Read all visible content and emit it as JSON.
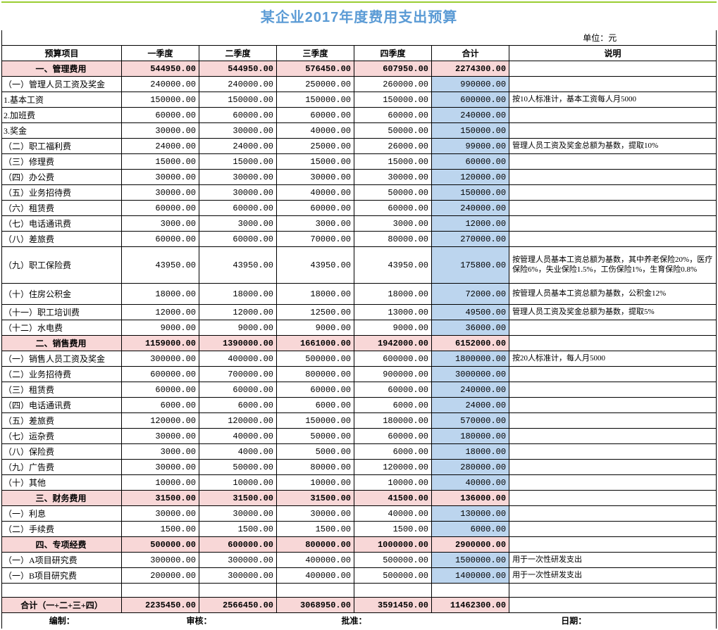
{
  "title": "某企业2017年度费用支出预算",
  "unit_label": "单位：元",
  "headers": {
    "item": "预算项目",
    "q1": "一季度",
    "q2": "二季度",
    "q3": "三季度",
    "q4": "四季度",
    "total": "合计",
    "desc": "说明"
  },
  "rows": [
    {
      "t": "sec",
      "label": "一、管理费用",
      "q1": "544950.00",
      "q2": "544950.00",
      "q3": "576450.00",
      "q4": "607950.00",
      "tot": "2274300.00",
      "desc": ""
    },
    {
      "t": "row",
      "label": "（一）管理人员工资及奖金",
      "q1": "240000.00",
      "q2": "240000.00",
      "q3": "250000.00",
      "q4": "260000.00",
      "tot": "990000.00",
      "desc": ""
    },
    {
      "t": "row",
      "label": "1.基本工资",
      "q1": "150000.00",
      "q2": "150000.00",
      "q3": "150000.00",
      "q4": "150000.00",
      "tot": "600000.00",
      "desc": "按10人标准计，基本工资每人月5000"
    },
    {
      "t": "row",
      "label": "2.加班费",
      "q1": "60000.00",
      "q2": "60000.00",
      "q3": "60000.00",
      "q4": "60000.00",
      "tot": "240000.00",
      "desc": ""
    },
    {
      "t": "row",
      "label": "3.奖金",
      "q1": "30000.00",
      "q2": "30000.00",
      "q3": "40000.00",
      "q4": "50000.00",
      "tot": "150000.00",
      "desc": ""
    },
    {
      "t": "row",
      "label": "（二）职工福利费",
      "q1": "24000.00",
      "q2": "24000.00",
      "q3": "25000.00",
      "q4": "26000.00",
      "tot": "99000.00",
      "desc": "管理人员工资及奖金总额为基数，提取10%"
    },
    {
      "t": "row",
      "label": "（三）修理费",
      "q1": "15000.00",
      "q2": "15000.00",
      "q3": "15000.00",
      "q4": "15000.00",
      "tot": "60000.00",
      "desc": ""
    },
    {
      "t": "row",
      "label": "（四）办公费",
      "q1": "30000.00",
      "q2": "30000.00",
      "q3": "30000.00",
      "q4": "30000.00",
      "tot": "120000.00",
      "desc": ""
    },
    {
      "t": "row",
      "label": "（五）业务招待费",
      "q1": "30000.00",
      "q2": "30000.00",
      "q3": "40000.00",
      "q4": "50000.00",
      "tot": "150000.00",
      "desc": ""
    },
    {
      "t": "row",
      "label": "（六）租赁费",
      "q1": "60000.00",
      "q2": "60000.00",
      "q3": "60000.00",
      "q4": "60000.00",
      "tot": "240000.00",
      "desc": ""
    },
    {
      "t": "row",
      "label": "（七）电话通讯费",
      "q1": "3000.00",
      "q2": "3000.00",
      "q3": "3000.00",
      "q4": "3000.00",
      "tot": "12000.00",
      "desc": ""
    },
    {
      "t": "row",
      "label": "（八）差旅费",
      "q1": "60000.00",
      "q2": "60000.00",
      "q3": "70000.00",
      "q4": "80000.00",
      "tot": "270000.00",
      "desc": ""
    },
    {
      "t": "row",
      "label": "（九）职工保险费",
      "q1": "43950.00",
      "q2": "43950.00",
      "q3": "43950.00",
      "q4": "43950.00",
      "tot": "175800.00",
      "desc": "按管理人员基本工资总额为基数，其中养老保险20%，医疗保险6%，失业保险1.5%，工伤保险1%，生育保险0.8%",
      "tall": true
    },
    {
      "t": "row",
      "label": "（十）住房公积金",
      "q1": "18000.00",
      "q2": "18000.00",
      "q3": "18000.00",
      "q4": "18000.00",
      "tot": "72000.00",
      "desc": "按管理人员基本工资总额为基数，公积金12%",
      "tall2": true
    },
    {
      "t": "row",
      "label": "（十一）职工培训费",
      "q1": "12000.00",
      "q2": "12000.00",
      "q3": "12500.00",
      "q4": "13000.00",
      "tot": "49500.00",
      "desc": "管理人员工资及奖金总额为基数，提取5%"
    },
    {
      "t": "row",
      "label": "（十二）水电费",
      "q1": "9000.00",
      "q2": "9000.00",
      "q3": "9000.00",
      "q4": "9000.00",
      "tot": "36000.00",
      "desc": ""
    },
    {
      "t": "sec",
      "label": "二、销售费用",
      "q1": "1159000.00",
      "q2": "1390000.00",
      "q3": "1661000.00",
      "q4": "1942000.00",
      "tot": "6152000.00",
      "desc": ""
    },
    {
      "t": "row",
      "label": "（一）销售人员工资及奖金",
      "q1": "300000.00",
      "q2": "400000.00",
      "q3": "500000.00",
      "q4": "600000.00",
      "tot": "1800000.00",
      "desc": "按20人标准计，每人月5000"
    },
    {
      "t": "row",
      "label": "（二）业务招待费",
      "q1": "600000.00",
      "q2": "700000.00",
      "q3": "800000.00",
      "q4": "900000.00",
      "tot": "3000000.00",
      "desc": ""
    },
    {
      "t": "row",
      "label": "（三）租赁费",
      "q1": "60000.00",
      "q2": "60000.00",
      "q3": "60000.00",
      "q4": "60000.00",
      "tot": "240000.00",
      "desc": ""
    },
    {
      "t": "row",
      "label": "（四）电话通讯费",
      "q1": "6000.00",
      "q2": "6000.00",
      "q3": "6000.00",
      "q4": "6000.00",
      "tot": "24000.00",
      "desc": ""
    },
    {
      "t": "row",
      "label": "（五）差旅费",
      "q1": "120000.00",
      "q2": "120000.00",
      "q3": "150000.00",
      "q4": "180000.00",
      "tot": "570000.00",
      "desc": ""
    },
    {
      "t": "row",
      "label": "（七）运杂费",
      "q1": "30000.00",
      "q2": "40000.00",
      "q3": "50000.00",
      "q4": "60000.00",
      "tot": "180000.00",
      "desc": ""
    },
    {
      "t": "row",
      "label": "（八）保险费",
      "q1": "3000.00",
      "q2": "4000.00",
      "q3": "5000.00",
      "q4": "6000.00",
      "tot": "18000.00",
      "desc": ""
    },
    {
      "t": "row",
      "label": "（九）广告费",
      "q1": "30000.00",
      "q2": "50000.00",
      "q3": "80000.00",
      "q4": "120000.00",
      "tot": "280000.00",
      "desc": ""
    },
    {
      "t": "row",
      "label": "（十）其他",
      "q1": "10000.00",
      "q2": "10000.00",
      "q3": "10000.00",
      "q4": "10000.00",
      "tot": "40000.00",
      "desc": ""
    },
    {
      "t": "sec",
      "label": "三、财务费用",
      "q1": "31500.00",
      "q2": "31500.00",
      "q3": "31500.00",
      "q4": "41500.00",
      "tot": "136000.00",
      "desc": ""
    },
    {
      "t": "row",
      "label": "（一）利息",
      "q1": "30000.00",
      "q2": "30000.00",
      "q3": "30000.00",
      "q4": "40000.00",
      "tot": "130000.00",
      "desc": ""
    },
    {
      "t": "row",
      "label": "（二）手续费",
      "q1": "1500.00",
      "q2": "1500.00",
      "q3": "1500.00",
      "q4": "1500.00",
      "tot": "6000.00",
      "desc": ""
    },
    {
      "t": "sec",
      "label": "四、专项经费",
      "q1": "500000.00",
      "q2": "600000.00",
      "q3": "800000.00",
      "q4": "1000000.00",
      "tot": "2900000.00",
      "desc": ""
    },
    {
      "t": "row",
      "label": "（一）A项目研究费",
      "q1": "300000.00",
      "q2": "300000.00",
      "q3": "400000.00",
      "q4": "500000.00",
      "tot": "1500000.00",
      "desc": "用于一次性研发支出"
    },
    {
      "t": "row",
      "label": "（一）B项目研究费",
      "q1": "200000.00",
      "q2": "300000.00",
      "q3": "400000.00",
      "q4": "500000.00",
      "tot": "1400000.00",
      "desc": "用于一次性研发支出"
    }
  ],
  "grand": {
    "label": "合计（一+二+三+四）",
    "q1": "2235450.00",
    "q2": "2566450.00",
    "q3": "3068950.00",
    "q4": "3591450.00",
    "tot": "11462300.00"
  },
  "footer": {
    "a": "编制：",
    "b": "审核：",
    "c": "批准：",
    "d": "日期："
  },
  "style": {
    "title_color": "#5b9bd5",
    "section_bg": "#f8d7d7",
    "total_bg": "#bcd5ee",
    "title_fontsize": 20,
    "body_fontsize": 12,
    "col_widths": {
      "item": 170,
      "q": 110
    }
  }
}
